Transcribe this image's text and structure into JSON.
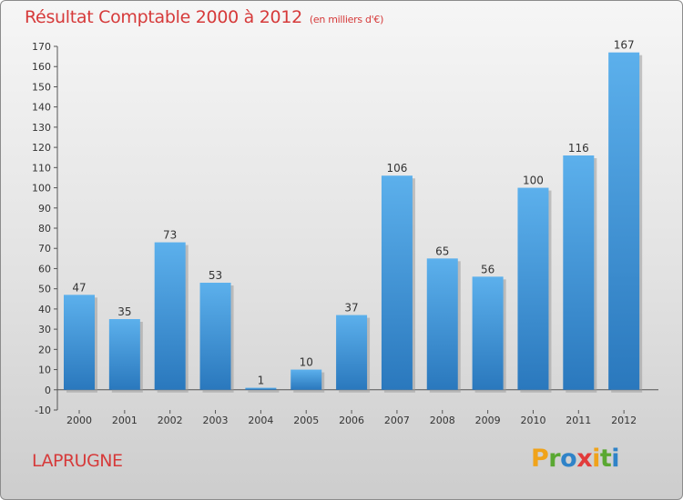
{
  "header": {
    "title": "Résultat Comptable 2000 à 2012",
    "subtitle": "(en milliers d'€)"
  },
  "footer": {
    "commune": "LAPRUGNE"
  },
  "logo": {
    "letters": [
      "P",
      "r",
      "o",
      "x",
      "i",
      "t",
      "i"
    ],
    "colors": [
      "#f0a31a",
      "#5aa832",
      "#2f83c8",
      "#e23b3b",
      "#f0a31a",
      "#5aa832",
      "#2f83c8"
    ]
  },
  "chart_data": {
    "type": "bar",
    "title": "Résultat Comptable 2000 à 2012",
    "categories": [
      "2000",
      "2001",
      "2002",
      "2003",
      "2004",
      "2005",
      "2006",
      "2007",
      "2008",
      "2009",
      "2010",
      "2011",
      "2012"
    ],
    "values": [
      47,
      35,
      73,
      53,
      1,
      10,
      37,
      106,
      65,
      56,
      100,
      116,
      167
    ],
    "ylim": [
      -10,
      170
    ],
    "yticks": [
      -10,
      0,
      10,
      20,
      30,
      40,
      50,
      60,
      70,
      80,
      90,
      100,
      110,
      120,
      130,
      140,
      150,
      160,
      170
    ],
    "grid": false,
    "bar_color": "#4a9fe0"
  }
}
